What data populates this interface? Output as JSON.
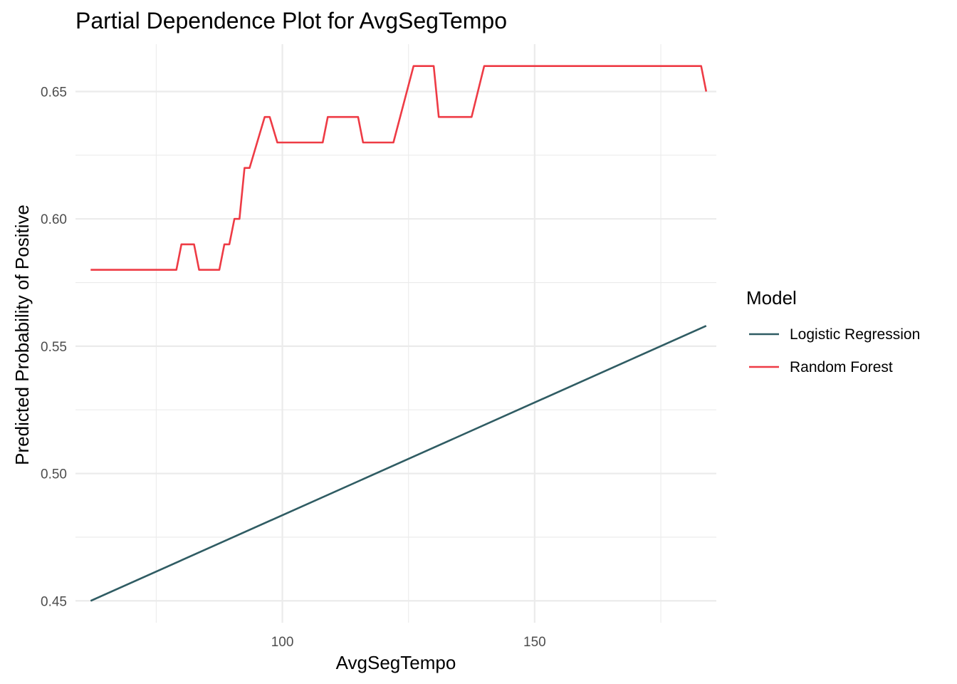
{
  "chart_data": {
    "type": "line",
    "title": "Partial Dependence Plot for AvgSegTempo",
    "xlabel": "AvgSegTempo",
    "ylabel": "Predicted Probability of Positive",
    "xlim": [
      59,
      186
    ],
    "ylim": [
      0.4414,
      0.6686
    ],
    "x_ticks": [
      100,
      150
    ],
    "x_minor_ticks": [
      75,
      125,
      175
    ],
    "y_ticks": [
      0.45,
      0.5,
      0.55,
      0.6,
      0.65
    ],
    "y_tick_labels": [
      "0.45",
      "0.50",
      "0.55",
      "0.60",
      "0.65"
    ],
    "y_minor_ticks": [
      0.475,
      0.525,
      0.575,
      0.625
    ],
    "grid": true,
    "legend": {
      "title": "Model",
      "position": "right"
    },
    "series": [
      {
        "name": "Logistic Regression",
        "color": "#2F5C63",
        "x": [
          62,
          184
        ],
        "y": [
          0.45,
          0.558
        ]
      },
      {
        "name": "Random Forest",
        "color": "#EE3B45",
        "x": [
          62,
          79,
          80,
          82.5,
          83.5,
          87.5,
          88.5,
          89.5,
          90.5,
          91.5,
          92.5,
          93.5,
          96.5,
          97.5,
          99,
          100,
          108,
          109,
          115,
          116,
          122,
          126,
          130,
          131,
          137.5,
          140,
          183,
          184
        ],
        "y": [
          0.58,
          0.58,
          0.59,
          0.59,
          0.58,
          0.58,
          0.59,
          0.59,
          0.6,
          0.6,
          0.62,
          0.62,
          0.64,
          0.64,
          0.63,
          0.63,
          0.63,
          0.64,
          0.64,
          0.63,
          0.63,
          0.66,
          0.66,
          0.64,
          0.64,
          0.66,
          0.66,
          0.65
        ]
      }
    ]
  }
}
